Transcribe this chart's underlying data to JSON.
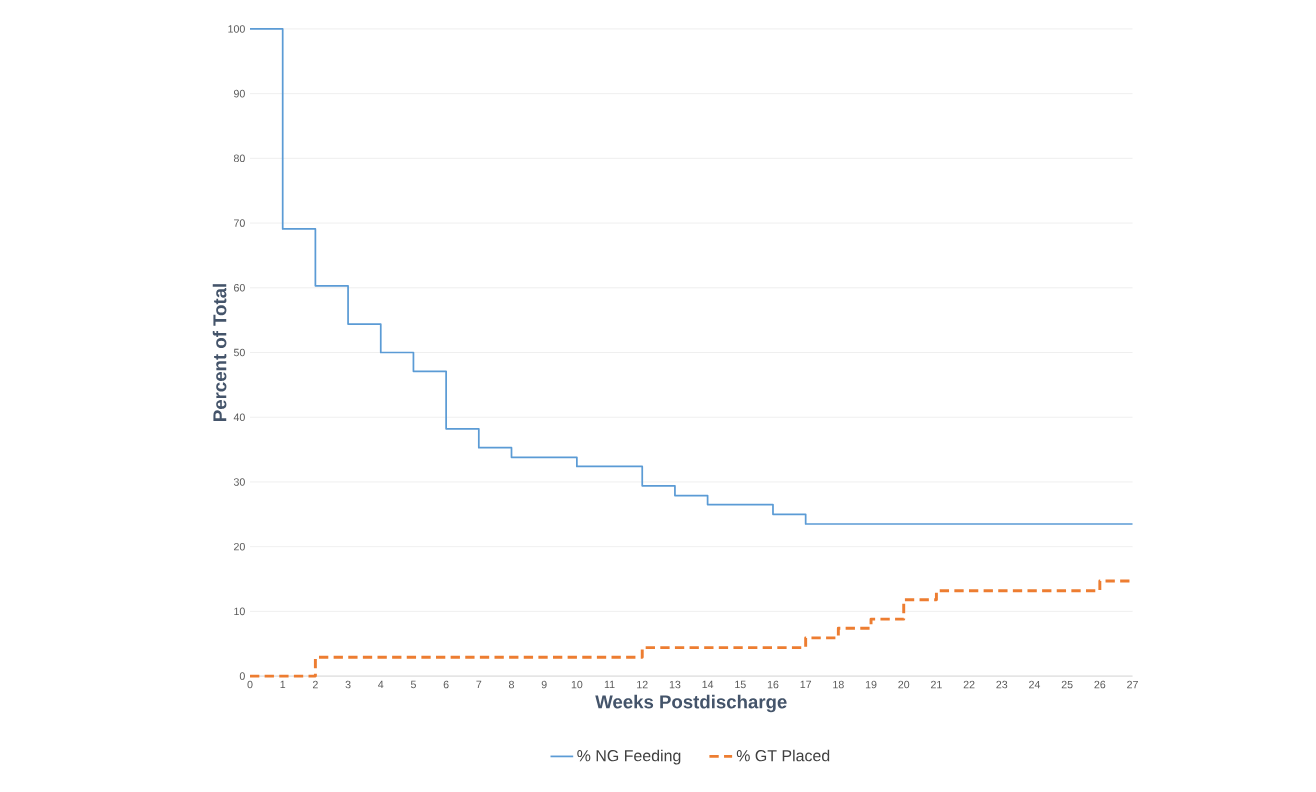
{
  "chart_data": {
    "type": "step",
    "xlabel": "Weeks Postdischarge",
    "ylabel": "Percent of Total",
    "xlim": [
      0,
      27
    ],
    "xticks": [
      0,
      1,
      2,
      3,
      4,
      5,
      6,
      7,
      8,
      9,
      10,
      11,
      12,
      13,
      14,
      15,
      16,
      17,
      18,
      19,
      20,
      21,
      22,
      23,
      24,
      25,
      26,
      27
    ],
    "ylim": [
      0,
      100
    ],
    "yticks": [
      0,
      10,
      20,
      30,
      40,
      50,
      60,
      70,
      80,
      90,
      100
    ],
    "grid": "y",
    "legend": "bottom",
    "marker": "none",
    "series": [
      {
        "name": "% NG Feeding",
        "color": "#5b9bd5",
        "line_style": "solid",
        "x": [
          0,
          1,
          2,
          3,
          4,
          5,
          6,
          7,
          8,
          10,
          12,
          13,
          14,
          16,
          17,
          27
        ],
        "values": [
          100,
          69.1,
          60.3,
          54.4,
          50,
          47.1,
          38.2,
          35.3,
          33.8,
          32.4,
          29.4,
          27.9,
          26.5,
          25,
          23.5,
          23.5
        ]
      },
      {
        "name": "% GT Placed",
        "color": "#ed7d31",
        "line_style": "dashed",
        "x": [
          0,
          2,
          12,
          17,
          18,
          19,
          20,
          21,
          26,
          27
        ],
        "values": [
          0,
          2.9,
          4.4,
          5.9,
          7.4,
          8.8,
          11.8,
          13.2,
          14.7,
          14.7
        ]
      }
    ]
  }
}
